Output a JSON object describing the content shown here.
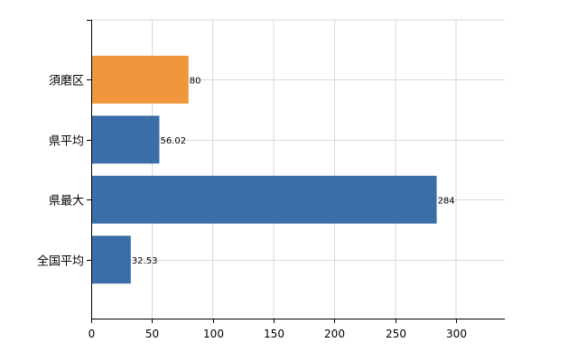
{
  "chart_data": {
    "type": "bar",
    "orientation": "horizontal",
    "categories": [
      "須磨区",
      "県平均",
      "県最大",
      "全国平均"
    ],
    "values": [
      80,
      56.02,
      284,
      32.53
    ],
    "value_labels": [
      "80",
      "56.02",
      "284",
      "32.53"
    ],
    "bar_colors": [
      "#f0963c",
      "#3a6ea8",
      "#3a6ea8",
      "#3a6ea8"
    ],
    "highlight_color": "#f0963c",
    "default_color": "#3a6ea8",
    "xlim": [
      0,
      340
    ],
    "xticks": [
      0,
      50,
      100,
      150,
      200,
      250,
      300
    ],
    "xtick_labels": [
      "0",
      "50",
      "100",
      "150",
      "200",
      "250",
      "300"
    ],
    "grid": true,
    "legend": "none",
    "title": "",
    "xlabel": "",
    "ylabel": ""
  }
}
